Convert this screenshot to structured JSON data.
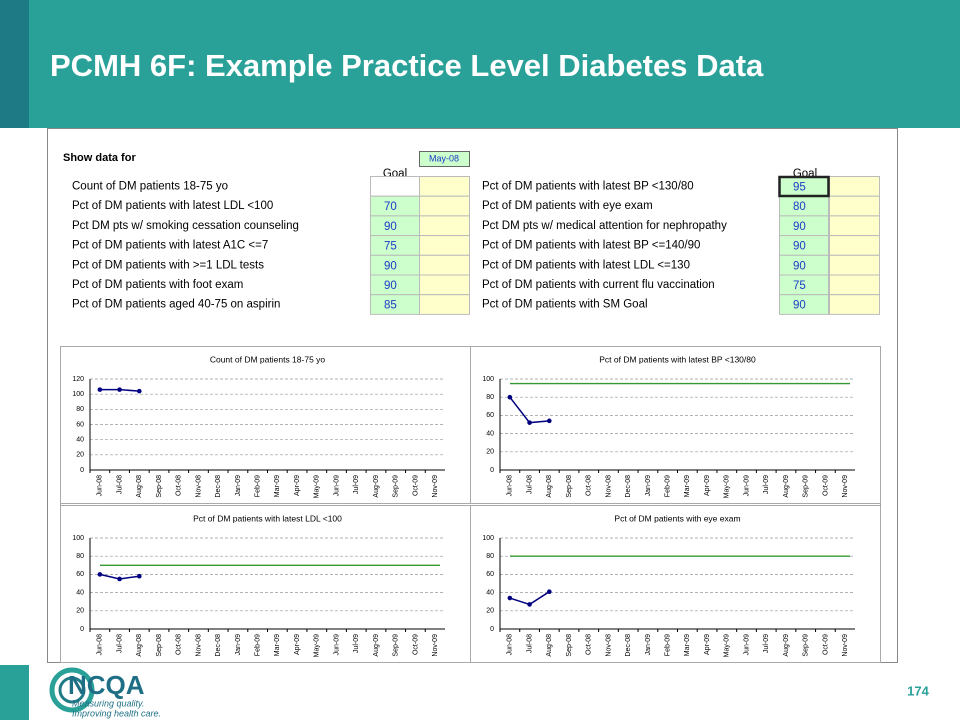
{
  "title": "PCMH 6F: Example Practice Level Diabetes Data",
  "page_number": "174",
  "logo": {
    "name": "NCQA",
    "tagline": [
      "Measuring quality.",
      "Improving health care."
    ]
  },
  "sheet": {
    "show_label": "Show data for",
    "month": "May-08",
    "goal_header": "Goal",
    "left": [
      {
        "label": "Count of DM patients 18-75 yo",
        "goal": null
      },
      {
        "label": "Pct of DM patients with latest LDL <100",
        "goal": 70
      },
      {
        "label": "Pct DM pts w/ smoking cessation counseling",
        "goal": 90
      },
      {
        "label": "Pct of DM patients with latest A1C <=7",
        "goal": 75
      },
      {
        "label": "Pct of DM patients with >=1 LDL tests",
        "goal": 90
      },
      {
        "label": "Pct of DM patients with foot exam",
        "goal": 90
      },
      {
        "label": "Pct of DM patients aged 40-75 on aspirin",
        "goal": 85
      }
    ],
    "right": [
      {
        "label": "Pct of DM patients with latest BP <130/80",
        "goal": 95
      },
      {
        "label": "Pct of DM patients with eye exam",
        "goal": 80
      },
      {
        "label": "Pct DM pts w/ medical attention for nephropathy",
        "goal": 90
      },
      {
        "label": "Pct of DM patients with latest BP <=140/90",
        "goal": 90
      },
      {
        "label": "Pct of DM patients with latest LDL <=130",
        "goal": 90
      },
      {
        "label": "Pct of DM patients with current flu vaccination",
        "goal": 75
      },
      {
        "label": "Pct of DM patients with SM Goal",
        "goal": 90
      }
    ]
  },
  "chart_data": [
    {
      "type": "line",
      "title": "Count of DM patients 18-75 yo",
      "categories": [
        "Jun-08",
        "Jul-08",
        "Aug-08",
        "Sep-08",
        "Oct-08",
        "Nov-08",
        "Dec-08",
        "Jan-09",
        "Feb-09",
        "Mar-09",
        "Apr-09",
        "May-09",
        "Jun-09",
        "Jul-09",
        "Aug-09",
        "Sep-09",
        "Oct-09",
        "Nov-09"
      ],
      "series": [
        {
          "color": "#000080",
          "values": [
            106,
            106,
            104,
            null,
            null,
            null,
            null,
            null,
            null,
            null,
            null,
            null,
            null,
            null,
            null,
            null,
            null,
            null
          ]
        }
      ],
      "ylim": [
        0,
        120
      ],
      "yticks": [
        0,
        20,
        40,
        60,
        80,
        100,
        120
      ],
      "grid": true
    },
    {
      "type": "line",
      "title": "Pct of DM patients with latest BP <130/80",
      "categories": [
        "Jun-08",
        "Jul-08",
        "Aug-08",
        "Sep-08",
        "Oct-08",
        "Nov-08",
        "Dec-08",
        "Jan-09",
        "Feb-09",
        "Mar-09",
        "Apr-09",
        "May-09",
        "Jun-09",
        "Jul-09",
        "Aug-09",
        "Sep-09",
        "Oct-09",
        "Nov-09"
      ],
      "series": [
        {
          "color": "#000080",
          "values": [
            80,
            52,
            54,
            null,
            null,
            null,
            null,
            null,
            null,
            null,
            null,
            null,
            null,
            null,
            null,
            null,
            null,
            null
          ]
        }
      ],
      "goal_line": 95,
      "goal_color": "#339933",
      "ylim": [
        0,
        100
      ],
      "yticks": [
        0,
        20,
        40,
        60,
        80,
        100
      ],
      "grid": true
    },
    {
      "type": "line",
      "title": "Pct of DM patients with latest LDL <100",
      "categories": [
        "Jun-08",
        "Jul-08",
        "Aug-08",
        "Sep-08",
        "Oct-08",
        "Nov-08",
        "Dec-08",
        "Jan-09",
        "Feb-09",
        "Mar-09",
        "Apr-09",
        "May-09",
        "Jun-09",
        "Jul-09",
        "Aug-09",
        "Sep-09",
        "Oct-09",
        "Nov-09"
      ],
      "series": [
        {
          "color": "#000080",
          "values": [
            60,
            55,
            58,
            null,
            null,
            null,
            null,
            null,
            null,
            null,
            null,
            null,
            null,
            null,
            null,
            null,
            null,
            null
          ]
        }
      ],
      "goal_line": 70,
      "goal_color": "#339933",
      "ylim": [
        0,
        100
      ],
      "yticks": [
        0,
        20,
        40,
        60,
        80,
        100
      ],
      "grid": true
    },
    {
      "type": "line",
      "title": "Pct of DM patients with eye exam",
      "categories": [
        "Jun-08",
        "Jul-08",
        "Aug-08",
        "Sep-08",
        "Oct-08",
        "Nov-08",
        "Dec-08",
        "Jan-09",
        "Feb-09",
        "Mar-09",
        "Apr-09",
        "May-09",
        "Jun-09",
        "Jul-09",
        "Aug-09",
        "Sep-09",
        "Oct-09",
        "Nov-09"
      ],
      "series": [
        {
          "color": "#000080",
          "values": [
            34,
            27,
            41,
            null,
            null,
            null,
            null,
            null,
            null,
            null,
            null,
            null,
            null,
            null,
            null,
            null,
            null,
            null
          ]
        }
      ],
      "goal_line": 80,
      "goal_color": "#339933",
      "ylim": [
        0,
        100
      ],
      "yticks": [
        0,
        20,
        40,
        60,
        80,
        100
      ],
      "grid": true
    }
  ]
}
